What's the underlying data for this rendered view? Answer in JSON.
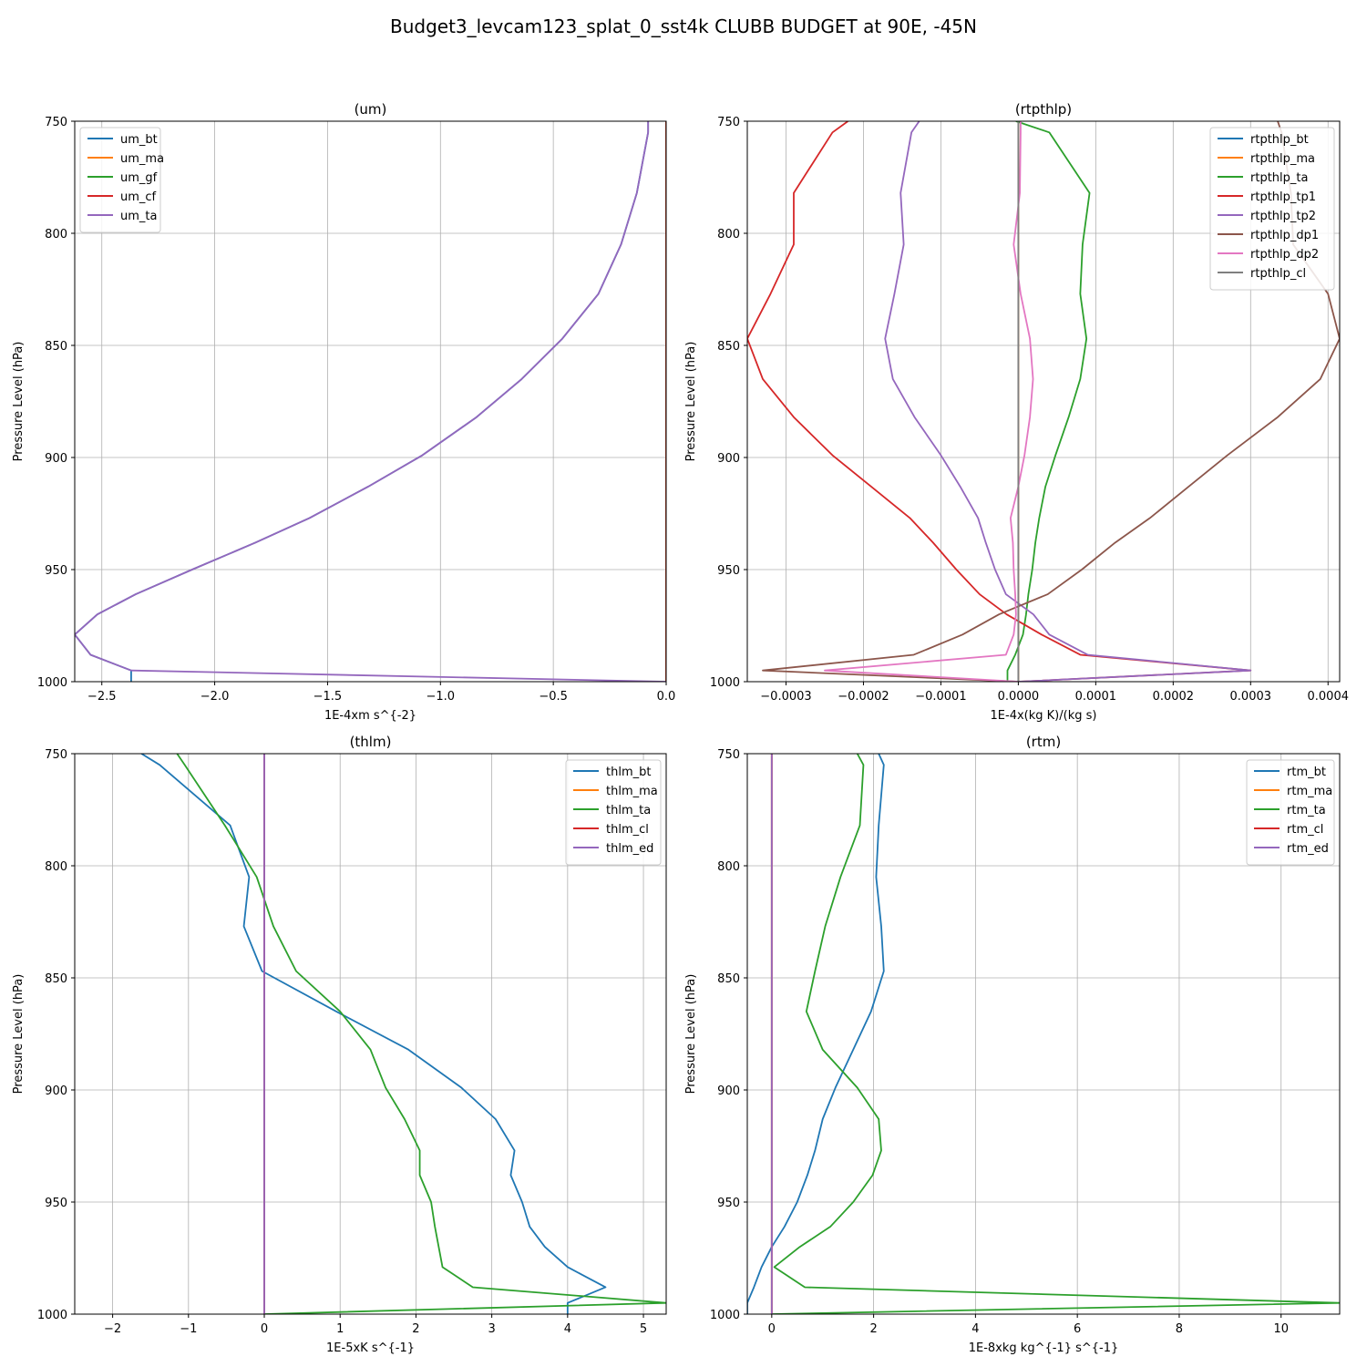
{
  "suptitle": "Budget3_levcam123_splat_0_sst4k CLUBB BUDGET at 90E, -45N",
  "chart_data": [
    {
      "type": "line",
      "title": "(um)",
      "xlabel": "1E-4xm s^{-2}",
      "ylabel": "Pressure Level (hPa)",
      "xlim": [
        -2.62,
        0.0
      ],
      "ylim": [
        1000,
        750
      ],
      "xticks": [
        -2.5,
        -2.0,
        -1.5,
        -1.0,
        -0.5,
        0.0
      ],
      "xtick_labels": [
        "−2.5",
        "−2.0",
        "−1.5",
        "−1.0",
        "−0.5",
        "0.0"
      ],
      "yticks": [
        750,
        800,
        850,
        900,
        950,
        1000
      ],
      "ytick_labels": [
        "750",
        "800",
        "850",
        "900",
        "950",
        "1000"
      ],
      "grid": true,
      "legend_position": "upper-left",
      "pressure": [
        750,
        755,
        782,
        805,
        827,
        847,
        865,
        882,
        899,
        913,
        927,
        938,
        950,
        961,
        970,
        979,
        988,
        995,
        1000
      ],
      "series": [
        {
          "name": "um_bt",
          "color": "#1f77b4",
          "values": [
            -0.08,
            -0.08,
            -0.13,
            -0.2,
            -0.3,
            -0.46,
            -0.64,
            -0.84,
            -1.08,
            -1.32,
            -1.58,
            -1.82,
            -2.1,
            -2.35,
            -2.52,
            -2.62,
            -2.55,
            -2.37,
            -2.37
          ]
        },
        {
          "name": "um_ma",
          "color": "#ff7f0e",
          "values": [
            0,
            0,
            0,
            0,
            0,
            0,
            0,
            0,
            0,
            0,
            0,
            0,
            0,
            0,
            0,
            0,
            0,
            0,
            0
          ]
        },
        {
          "name": "um_gf",
          "color": "#2ca02c",
          "values": [
            0,
            0,
            0,
            0,
            0,
            0,
            0,
            0,
            0,
            0,
            0,
            0,
            0,
            0,
            0,
            0,
            0,
            0,
            0
          ]
        },
        {
          "name": "um_cf",
          "color": "#d62728",
          "values": [
            0,
            0,
            0,
            0,
            0,
            0,
            0,
            0,
            0,
            0,
            0,
            0,
            0,
            0,
            0,
            0,
            0,
            0,
            0
          ]
        },
        {
          "name": "um_ta",
          "color": "#9467bd",
          "values": [
            -0.08,
            -0.08,
            -0.13,
            -0.2,
            -0.3,
            -0.46,
            -0.64,
            -0.84,
            -1.08,
            -1.32,
            -1.58,
            -1.82,
            -2.1,
            -2.35,
            -2.52,
            -2.62,
            -2.55,
            -2.37,
            0.0
          ]
        }
      ]
    },
    {
      "type": "line",
      "title": "(rtpthlp)",
      "xlabel": "1E-4x(kg K)/(kg s)",
      "ylabel": "Pressure Level (hPa)",
      "xlim": [
        -0.00035,
        0.000415
      ],
      "ylim": [
        1000,
        750
      ],
      "xticks": [
        -0.0003,
        -0.0002,
        -0.0001,
        0.0,
        0.0001,
        0.0002,
        0.0003,
        0.0004
      ],
      "xtick_labels": [
        "−0.0003",
        "−0.0002",
        "−0.0001",
        "0.0000",
        "0.0001",
        "0.0002",
        "0.0003",
        "0.0004"
      ],
      "yticks": [
        750,
        800,
        850,
        900,
        950,
        1000
      ],
      "ytick_labels": [
        "750",
        "800",
        "850",
        "900",
        "950",
        "1000"
      ],
      "grid": true,
      "legend_position": "upper-right",
      "pressure": [
        750,
        755,
        782,
        805,
        827,
        847,
        865,
        882,
        899,
        913,
        927,
        938,
        950,
        961,
        970,
        979,
        988,
        995,
        1000
      ],
      "series": [
        {
          "name": "rtpthlp_bt",
          "color": "#1f77b4",
          "values": [
            0,
            0,
            0,
            0,
            0,
            0,
            0,
            0,
            0,
            0,
            0,
            0,
            0,
            0,
            0,
            0,
            0,
            0,
            0
          ]
        },
        {
          "name": "rtpthlp_ma",
          "color": "#ff7f0e",
          "values": [
            0,
            0,
            0,
            0,
            0,
            0,
            0,
            0,
            0,
            0,
            0,
            0,
            0,
            0,
            0,
            0,
            0,
            0,
            0
          ]
        },
        {
          "name": "rtpthlp_ta",
          "color": "#2ca02c",
          "values": [
            -3e-06,
            4e-05,
            9.2e-05,
            8.3e-05,
            8e-05,
            8.8e-05,
            8e-05,
            6.5e-05,
            4.8e-05,
            3.5e-05,
            2.7e-05,
            2.2e-05,
            1.8e-05,
            1.3e-05,
            1e-05,
            6e-06,
            -4e-06,
            -1.4e-05,
            -1.4e-05
          ]
        },
        {
          "name": "rtpthlp_tp1",
          "color": "#d62728",
          "values": [
            -0.00022,
            -0.00024,
            -0.00029,
            -0.00029,
            -0.00032,
            -0.00035,
            -0.00033,
            -0.00029,
            -0.00024,
            -0.00019,
            -0.00014,
            -0.00011,
            -8e-05,
            -5e-05,
            -1.5e-05,
            3e-05,
            8e-05,
            0.0003,
            0.0
          ]
        },
        {
          "name": "rtpthlp_tp2",
          "color": "#9467bd",
          "values": [
            -0.000128,
            -0.000138,
            -0.000152,
            -0.000148,
            -0.00016,
            -0.000172,
            -0.000162,
            -0.000134,
            -0.0001,
            -7.5e-05,
            -5.2e-05,
            -4.2e-05,
            -3e-05,
            -1.6e-05,
            1.95e-05,
            4e-05,
            8.95e-05,
            0.0003,
            0.0
          ]
        },
        {
          "name": "rtpthlp_dp1",
          "color": "#8c564b",
          "values": [
            0.000335,
            0.00034,
            0.000352,
            0.000355,
            0.0004,
            0.000415,
            0.00039,
            0.000335,
            0.00027,
            0.00022,
            0.00017,
            0.000125,
            8.2e-05,
            3.8e-05,
            -2.5e-05,
            -7.2e-05,
            -0.000135,
            -0.00033,
            0.0
          ]
        },
        {
          "name": "rtpthlp_dp2",
          "color": "#e377c2",
          "values": [
            3e-06,
            3e-06,
            2e-06,
            -6e-06,
            3e-06,
            1.5e-05,
            1.9e-05,
            1.5e-05,
            8e-06,
            0.0,
            -1e-05,
            -7e-06,
            -6e-06,
            -4e-06,
            -3e-06,
            -6e-06,
            -1.6e-05,
            -0.00025,
            0.0
          ]
        },
        {
          "name": "rtpthlp_cl",
          "color": "#7f7f7f",
          "values": [
            0,
            0,
            0,
            0,
            0,
            0,
            0,
            0,
            0,
            0,
            0,
            0,
            0,
            0,
            0,
            0,
            0,
            0,
            0
          ]
        }
      ]
    },
    {
      "type": "line",
      "title": "(thlm)",
      "xlabel": "1E-5xK s^{-1}",
      "ylabel": "Pressure Level (hPa)",
      "xlim": [
        -2.5,
        5.3
      ],
      "ylim": [
        1000,
        750
      ],
      "xticks": [
        -2,
        -1,
        0,
        1,
        2,
        3,
        4,
        5
      ],
      "xtick_labels": [
        "−2",
        "−1",
        "0",
        "1",
        "2",
        "3",
        "4",
        "5"
      ],
      "yticks": [
        750,
        800,
        850,
        900,
        950,
        1000
      ],
      "ytick_labels": [
        "750",
        "800",
        "850",
        "900",
        "950",
        "1000"
      ],
      "grid": true,
      "legend_position": "upper-right",
      "pressure": [
        750,
        755,
        782,
        805,
        827,
        847,
        865,
        882,
        899,
        913,
        927,
        938,
        950,
        961,
        970,
        979,
        988,
        995,
        1000
      ],
      "series": [
        {
          "name": "thlm_bt",
          "color": "#1f77b4",
          "values": [
            -1.62,
            -1.38,
            -0.45,
            -0.2,
            -0.27,
            -0.03,
            0.95,
            1.9,
            2.6,
            3.05,
            3.3,
            3.25,
            3.4,
            3.5,
            3.7,
            4.0,
            4.5,
            4.0,
            4.0
          ]
        },
        {
          "name": "thlm_ma",
          "color": "#ff7f0e",
          "values": [
            0,
            0,
            0,
            0,
            0,
            0,
            0,
            0,
            0,
            0,
            0,
            0,
            0,
            0,
            0,
            0,
            0,
            0,
            0
          ]
        },
        {
          "name": "thlm_ta",
          "color": "#2ca02c",
          "values": [
            -1.15,
            -1.05,
            -0.52,
            -0.1,
            0.12,
            0.42,
            1.0,
            1.4,
            1.6,
            1.85,
            2.05,
            2.05,
            2.2,
            2.25,
            2.3,
            2.35,
            2.75,
            5.3,
            0.0
          ]
        },
        {
          "name": "thlm_cl",
          "color": "#d62728",
          "values": [
            0,
            0,
            0,
            0,
            0,
            0,
            0,
            0,
            0,
            0,
            0,
            0,
            0,
            0,
            0,
            0,
            0,
            0,
            0
          ]
        },
        {
          "name": "thlm_ed",
          "color": "#9467bd",
          "values": [
            0,
            0,
            0,
            0,
            0,
            0,
            0,
            0,
            0,
            0,
            0,
            0,
            0,
            0,
            0,
            0,
            0,
            0,
            0
          ]
        }
      ]
    },
    {
      "type": "line",
      "title": "(rtm)",
      "xlabel": "1E-8xkg kg^{-1} s^{-1}",
      "ylabel": "Pressure Level (hPa)",
      "xlim": [
        -0.48,
        11.15
      ],
      "ylim": [
        1000,
        750
      ],
      "xticks": [
        0,
        2,
        4,
        6,
        8,
        10
      ],
      "xtick_labels": [
        "0",
        "2",
        "4",
        "6",
        "8",
        "10"
      ],
      "yticks": [
        750,
        800,
        850,
        900,
        950,
        1000
      ],
      "ytick_labels": [
        "750",
        "800",
        "850",
        "900",
        "950",
        "1000"
      ],
      "grid": true,
      "legend_position": "upper-right",
      "pressure": [
        750,
        755,
        782,
        805,
        827,
        847,
        865,
        882,
        899,
        913,
        927,
        938,
        950,
        961,
        970,
        979,
        988,
        995,
        1000
      ],
      "series": [
        {
          "name": "rtm_bt",
          "color": "#1f77b4",
          "values": [
            2.1,
            2.2,
            2.1,
            2.05,
            2.15,
            2.2,
            1.95,
            1.6,
            1.25,
            1.0,
            0.85,
            0.7,
            0.5,
            0.25,
            0.0,
            -0.2,
            -0.35,
            -0.48,
            -0.48
          ]
        },
        {
          "name": "rtm_ma",
          "color": "#ff7f0e",
          "values": [
            0,
            0,
            0,
            0,
            0,
            0,
            0,
            0,
            0,
            0,
            0,
            0,
            0,
            0,
            0,
            0,
            0,
            0,
            0
          ]
        },
        {
          "name": "rtm_ta",
          "color": "#2ca02c",
          "values": [
            1.68,
            1.8,
            1.73,
            1.35,
            1.05,
            0.85,
            0.68,
            1.0,
            1.68,
            2.1,
            2.15,
            1.98,
            1.6,
            1.15,
            0.55,
            0.05,
            0.65,
            11.15,
            0.0
          ]
        },
        {
          "name": "rtm_cl",
          "color": "#d62728",
          "values": [
            0,
            0,
            0,
            0,
            0,
            0,
            0,
            0,
            0,
            0,
            0,
            0,
            0,
            0,
            0,
            0,
            0,
            0,
            0
          ]
        },
        {
          "name": "rtm_ed",
          "color": "#9467bd",
          "values": [
            0,
            0,
            0,
            0,
            0,
            0,
            0,
            0,
            0,
            0,
            0,
            0,
            0,
            0,
            0,
            0,
            0,
            0,
            0
          ]
        }
      ]
    }
  ]
}
